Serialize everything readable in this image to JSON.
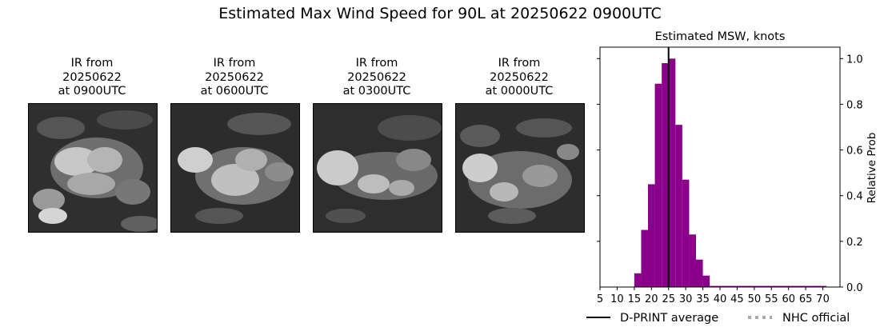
{
  "title": "Estimated Max Wind Speed for 90L at 20250622 0900UTC",
  "ir_panels": [
    {
      "title": "IR from\n20250622\nat 0900UTC"
    },
    {
      "title": "IR from\n20250622\nat 0600UTC"
    },
    {
      "title": "IR from\n20250622\nat 0300UTC"
    },
    {
      "title": "IR from\n20250622\nat 0000UTC"
    }
  ],
  "chart_data": {
    "type": "bar",
    "title": "Estimated MSW, knots",
    "xlabel": "",
    "ylabel": "Relative Prob",
    "xlim": [
      5,
      75
    ],
    "ylim": [
      0,
      1.05
    ],
    "x_ticks": [
      5,
      10,
      15,
      20,
      25,
      30,
      35,
      40,
      45,
      50,
      55,
      60,
      65,
      70
    ],
    "y_ticks": [
      0.2,
      0.4,
      0.6,
      0.8,
      1.0
    ],
    "y_tick_labels": [
      "0.2",
      "0.4",
      "0.6",
      "0.8",
      "1.0"
    ],
    "y_axis_side": "right",
    "bin_width": 2,
    "bins": [
      {
        "x": 15,
        "value": 0.06
      },
      {
        "x": 17,
        "value": 0.25
      },
      {
        "x": 19,
        "value": 0.45
      },
      {
        "x": 21,
        "value": 0.89
      },
      {
        "x": 23,
        "value": 0.98
      },
      {
        "x": 25,
        "value": 1.0
      },
      {
        "x": 27,
        "value": 0.71
      },
      {
        "x": 29,
        "value": 0.47
      },
      {
        "x": 31,
        "value": 0.23
      },
      {
        "x": 33,
        "value": 0.12
      },
      {
        "x": 35,
        "value": 0.05
      },
      {
        "x": 37,
        "value": 0.005
      },
      {
        "x": 39,
        "value": 0.005
      },
      {
        "x": 41,
        "value": 0.005
      },
      {
        "x": 43,
        "value": 0.005
      },
      {
        "x": 45,
        "value": 0.005
      },
      {
        "x": 47,
        "value": 0.005
      },
      {
        "x": 49,
        "value": 0.005
      },
      {
        "x": 51,
        "value": 0.005
      },
      {
        "x": 53,
        "value": 0.005
      },
      {
        "x": 55,
        "value": 0.005
      },
      {
        "x": 57,
        "value": 0.005
      },
      {
        "x": 59,
        "value": 0.005
      },
      {
        "x": 61,
        "value": 0.005
      },
      {
        "x": 63,
        "value": 0.005
      },
      {
        "x": 65,
        "value": 0.005
      },
      {
        "x": 67,
        "value": 0.005
      },
      {
        "x": 69,
        "value": 0.005
      }
    ],
    "average": 25,
    "bar_color": "#8b008b",
    "average_color": "#000000",
    "nhc_color": "#a9a9a9",
    "legend": [
      {
        "label": "D-PRINT average",
        "style": "solid",
        "color": "#000000"
      },
      {
        "label": "NHC official",
        "style": "dotted",
        "color": "#a9a9a9"
      }
    ],
    "legend_position": "bottom",
    "grid": false
  }
}
